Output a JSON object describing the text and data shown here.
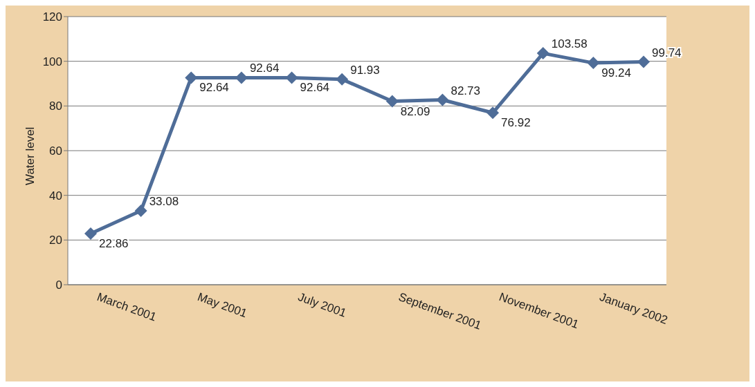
{
  "chart_data": {
    "type": "line",
    "ylabel": "Water level",
    "categories": [
      "March 2001",
      null,
      "May 2001",
      null,
      "July 2001",
      null,
      "September 2001",
      null,
      "November 2001",
      null,
      "January 2002",
      null
    ],
    "series": [
      {
        "color": "#4f6d98",
        "values": [
          22.86,
          33.08,
          92.64,
          92.64,
          92.64,
          91.93,
          82.09,
          82.73,
          76.92,
          103.58,
          99.24,
          99.74
        ]
      }
    ],
    "ylim": [
      0,
      120
    ],
    "yticks": [
      0,
      20,
      40,
      60,
      80,
      100,
      120
    ],
    "grid": "y",
    "marker": "diamond",
    "line_style": "solid",
    "data_labels": true,
    "legend": false
  }
}
